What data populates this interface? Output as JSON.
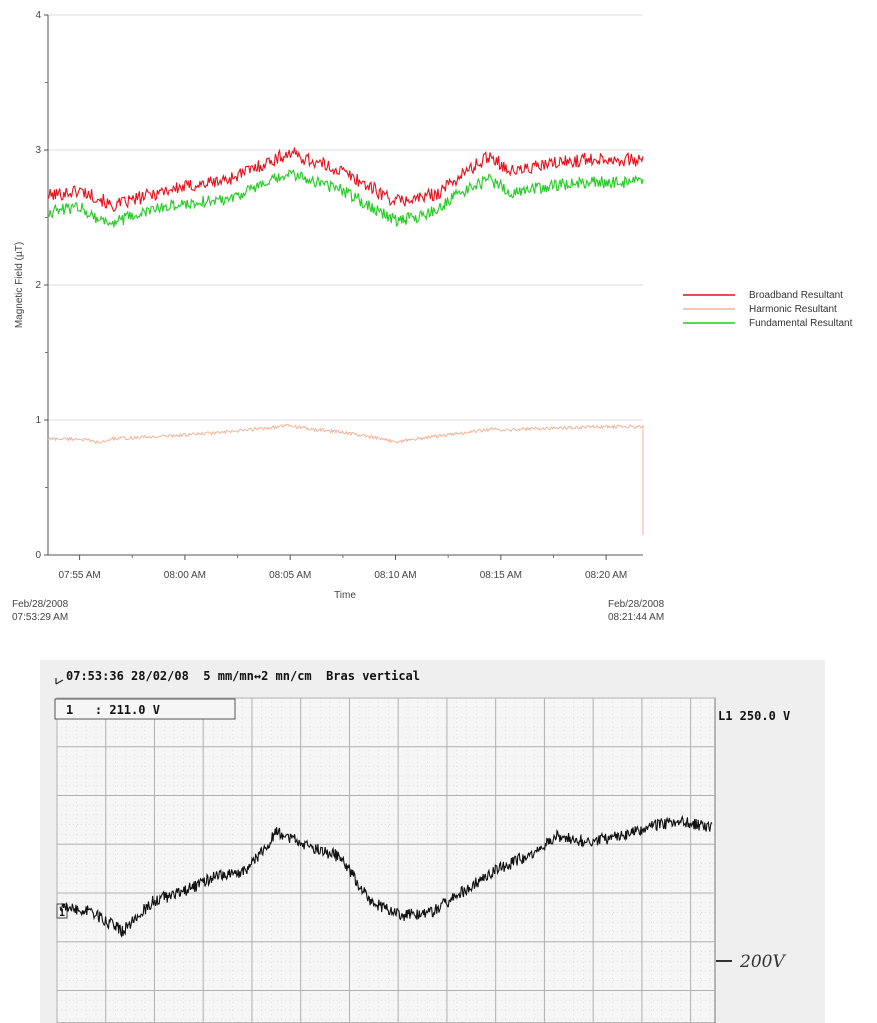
{
  "chart_data": [
    {
      "type": "line",
      "xlabel": "Time",
      "ylabel": "Magnetic Field (µT)",
      "ylim": [
        0,
        4
      ],
      "yticks": [
        "0",
        "1",
        "2",
        "3",
        "4"
      ],
      "xticks": [
        "07:55 AM",
        "08:00 AM",
        "08:05 AM",
        "08:10 AM",
        "08:15 AM",
        "08:20 AM"
      ],
      "x_range_start": "Feb/28/2008 07:53:29 AM",
      "x_range_end": "Feb/28/2008 08:21:44 AM",
      "grid": "horizontal",
      "legend_position": "right",
      "x_keypoints_minutes": [
        0,
        1.5,
        2.5,
        3,
        5.5,
        8.5,
        11.5,
        12.5,
        14,
        16.5,
        17.5,
        18.5,
        19.5,
        21,
        22,
        24,
        26,
        28.25
      ],
      "series": [
        {
          "name": "Broadband Resultant",
          "color": "#e8101a",
          "values": [
            2.66,
            2.7,
            2.64,
            2.58,
            2.7,
            2.78,
            2.98,
            2.92,
            2.84,
            2.62,
            2.64,
            2.68,
            2.8,
            2.96,
            2.84,
            2.9,
            2.94,
            2.92
          ]
        },
        {
          "name": "Harmonic Resultant",
          "color": "#f0b49a",
          "values": [
            0.86,
            0.86,
            0.83,
            0.86,
            0.88,
            0.91,
            0.96,
            0.93,
            0.91,
            0.84,
            0.86,
            0.88,
            0.9,
            0.93,
            0.93,
            0.94,
            0.95,
            0.95
          ]
        },
        {
          "name": "Fundamental Resultant",
          "color": "#22cc22",
          "values": [
            2.54,
            2.58,
            2.48,
            2.46,
            2.58,
            2.64,
            2.82,
            2.78,
            2.7,
            2.48,
            2.5,
            2.56,
            2.68,
            2.78,
            2.68,
            2.74,
            2.76,
            2.76
          ]
        }
      ]
    },
    {
      "type": "line",
      "header": "07:53:36 28/02/08  5 mm/mn↔2 mn/cm  Bras vertical",
      "channel_readout": "1   : 211.0 V",
      "scale_top": "L1 250.0 V",
      "channel_marker": "1",
      "handwritten_annotation": "200V",
      "series": [
        {
          "name": "",
          "color": "#111111",
          "values": [
            211,
            210,
            206,
            212,
            214,
            217,
            218,
            226,
            223,
            221,
            212,
            209,
            210,
            214,
            218,
            221,
            225,
            224,
            225,
            227,
            228,
            227
          ]
        }
      ]
    }
  ]
}
